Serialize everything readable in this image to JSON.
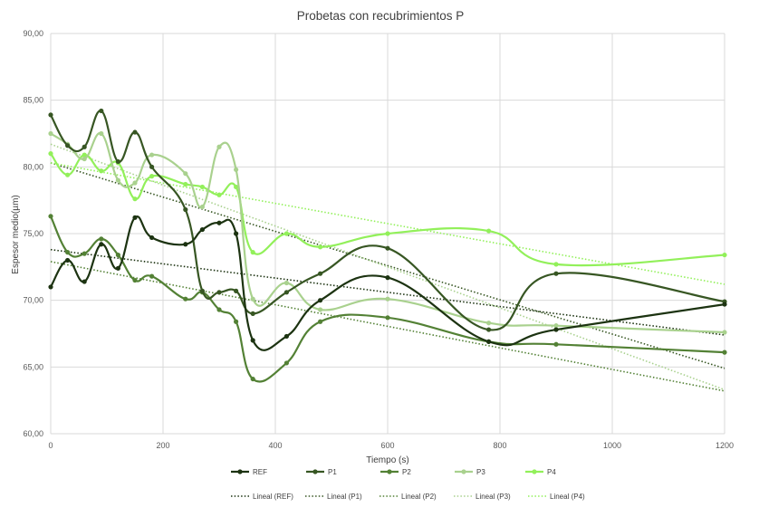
{
  "chart_data": {
    "type": "line",
    "title": "Probetas con recubrimientos P",
    "xlabel": "Tiempo (s)",
    "ylabel": "Espesor medio(µm)",
    "xlim": [
      0,
      1200
    ],
    "ylim": [
      60,
      90
    ],
    "xticks": [
      0,
      200,
      400,
      600,
      800,
      1000,
      1200
    ],
    "yticks": [
      60,
      65,
      70,
      75,
      80,
      85,
      90
    ],
    "ytick_labels": [
      "60,00",
      "65,00",
      "70,00",
      "75,00",
      "80,00",
      "85,00",
      "90,00"
    ],
    "grid": "vertical and horizontal major gridlines",
    "legend_position": "bottom",
    "series": [
      {
        "name": "REF",
        "color": "#1c3311",
        "x": [
          0,
          30,
          60,
          90,
          120,
          150,
          180,
          240,
          270,
          300,
          330,
          360,
          420,
          480,
          600,
          780,
          900,
          1200
        ],
        "y": [
          71.0,
          73.0,
          71.4,
          74.2,
          72.4,
          76.2,
          74.7,
          74.2,
          75.3,
          75.8,
          75.0,
          67.0,
          67.3,
          70.0,
          71.7,
          66.9,
          67.8,
          69.7
        ]
      },
      {
        "name": "P1",
        "color": "#375623",
        "x": [
          0,
          30,
          60,
          90,
          120,
          150,
          180,
          240,
          270,
          300,
          330,
          360,
          420,
          480,
          600,
          780,
          900,
          1200
        ],
        "y": [
          83.9,
          81.6,
          81.5,
          84.2,
          80.4,
          82.6,
          80.0,
          76.8,
          70.7,
          70.6,
          70.7,
          69.0,
          70.6,
          72.0,
          73.9,
          67.8,
          72.0,
          69.9
        ]
      },
      {
        "name": "P2",
        "color": "#538135",
        "x": [
          0,
          30,
          60,
          90,
          120,
          150,
          180,
          240,
          270,
          300,
          330,
          360,
          420,
          480,
          600,
          780,
          900,
          1200
        ],
        "y": [
          76.3,
          73.6,
          73.5,
          74.6,
          73.4,
          71.5,
          71.8,
          70.1,
          70.6,
          69.3,
          68.4,
          64.1,
          65.3,
          68.4,
          68.7,
          66.9,
          66.7,
          66.1
        ]
      },
      {
        "name": "P3",
        "color": "#a9d18e",
        "x": [
          0,
          30,
          60,
          90,
          120,
          150,
          180,
          240,
          270,
          300,
          330,
          360,
          420,
          480,
          600,
          780,
          900,
          1200
        ],
        "y": [
          82.5,
          81.7,
          80.6,
          82.5,
          79.0,
          78.8,
          80.9,
          79.5,
          77.0,
          81.5,
          79.8,
          70.1,
          71.3,
          69.3,
          70.1,
          68.3,
          68.1,
          67.6
        ]
      },
      {
        "name": "P4",
        "color": "#92f05a",
        "x": [
          0,
          30,
          60,
          90,
          120,
          150,
          180,
          240,
          270,
          300,
          330,
          360,
          420,
          480,
          600,
          780,
          900,
          1200
        ],
        "y": [
          81.0,
          79.4,
          80.9,
          79.7,
          80.3,
          77.6,
          79.3,
          78.7,
          78.5,
          77.9,
          78.5,
          73.6,
          75.0,
          74.0,
          75.0,
          75.2,
          72.7,
          73.4
        ]
      }
    ],
    "trendlines": [
      {
        "name": "Lineal (REF)",
        "of": "REF",
        "color": "#1c3311",
        "y_at_0": 73.8,
        "y_at_1200": 67.4
      },
      {
        "name": "Lineal (P1)",
        "of": "P1",
        "color": "#375623",
        "y_at_0": 80.3,
        "y_at_1200": 64.9
      },
      {
        "name": "Lineal (P2)",
        "of": "P2",
        "color": "#538135",
        "y_at_0": 72.9,
        "y_at_1200": 63.2
      },
      {
        "name": "Lineal (P3)",
        "of": "P3",
        "color": "#a9d18e",
        "y_at_0": 81.7,
        "y_at_1200": 63.3
      },
      {
        "name": "Lineal (P4)",
        "of": "P4",
        "color": "#92f05a",
        "y_at_0": 80.3,
        "y_at_1200": 71.2
      }
    ]
  }
}
